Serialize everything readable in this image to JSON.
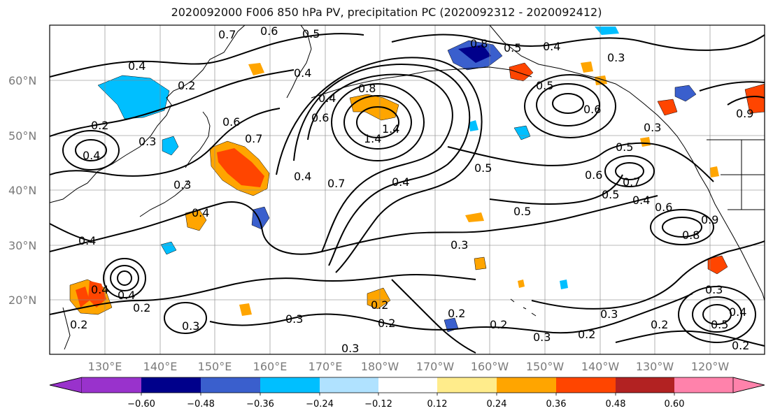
{
  "title": "2020092000 F006 850 hPa PV, precipitation PC (2020092312 - 2020092412)",
  "lat_labels": [
    "60°N",
    "50°N",
    "40°N",
    "30°N",
    "20°N"
  ],
  "lon_labels": [
    "130°E",
    "140°E",
    "150°E",
    "160°E",
    "170°E",
    "180°W",
    "170°W",
    "160°W",
    "150°W",
    "140°W",
    "130°W",
    "120°W"
  ],
  "colorbar": {
    "colors": [
      "#9932cc",
      "#00008b",
      "#3a5fcd",
      "#00bfff",
      "#b0e2ff",
      "#ffffff",
      "#ffec8b",
      "#ffa500",
      "#ff4500",
      "#b22222",
      "#ff82ab"
    ],
    "ticks": [
      "−0.60",
      "−0.48",
      "−0.36",
      "−0.24",
      "−0.12",
      "0.12",
      "0.24",
      "0.36",
      "0.48",
      "0.60"
    ]
  },
  "contour_labels": [
    "0.6",
    "0.7",
    "0.5",
    "0.8",
    "0.5",
    "0.4",
    "0.3",
    "0.4",
    "0.2",
    "0.2",
    "0.3",
    "0.4",
    "0.4",
    "0.6",
    "0.7",
    "0.4",
    "0.8",
    "0.4",
    "0.6",
    "1.4",
    "1.4",
    "0.7",
    "0.4",
    "0.5",
    "0.5",
    "0.6",
    "0.5",
    "0.3",
    "0.4",
    "0.6",
    "0.5",
    "0.5",
    "0.7",
    "0.4",
    "0.6",
    "0.8",
    "0.9",
    "0.4",
    "0.4",
    "0.3",
    "0.2",
    "0.3",
    "0.2",
    "0.3",
    "0.2",
    "0.2",
    "0.3",
    "0.2",
    "0.3",
    "0.2",
    "0.3",
    "0.2",
    "0.5",
    "0.4",
    "0.3",
    "0.2",
    "0.9",
    "0.4",
    "0.3",
    "0.2"
  ]
}
